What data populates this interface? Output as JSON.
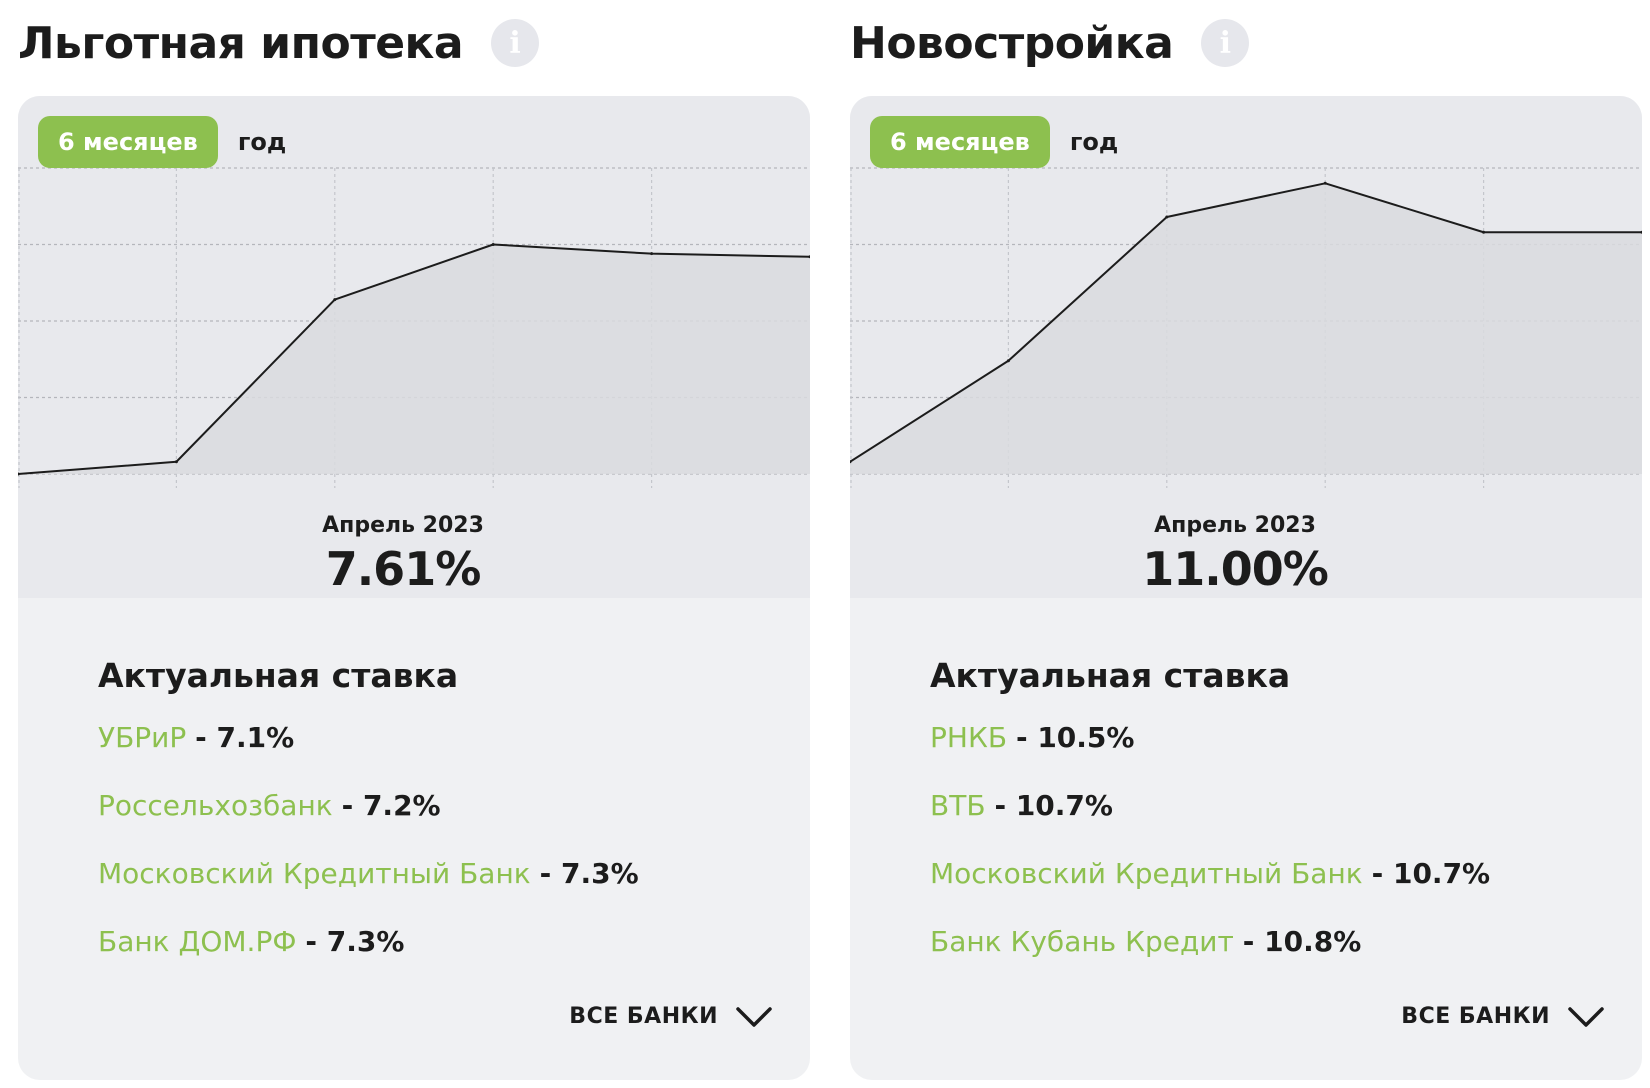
{
  "panels": [
    {
      "title": "Льготная ипотека",
      "tabs": [
        {
          "label": "6 месяцев",
          "active": true
        },
        {
          "label": "год",
          "active": false
        }
      ],
      "period": "Апрель 2023",
      "current_rate": "7.61%",
      "rates_title": "Актуальная ставка",
      "banks": [
        {
          "name": "УБРиР",
          "rate": "7.1%"
        },
        {
          "name": "Россельхозбанк",
          "rate": "7.2%"
        },
        {
          "name": "Московский Кредитный Банк",
          "rate": "7.3%"
        },
        {
          "name": "Банк ДОМ.РФ",
          "rate": "7.3%"
        }
      ],
      "all_banks_label": "ВСЕ БАНКИ"
    },
    {
      "title": "Новостройка",
      "tabs": [
        {
          "label": "6 месяцев",
          "active": true
        },
        {
          "label": "год",
          "active": false
        }
      ],
      "period": "Апрель 2023",
      "current_rate": "11.00%",
      "rates_title": "Актуальная ставка",
      "banks": [
        {
          "name": "РНКБ",
          "rate": "10.5%"
        },
        {
          "name": "ВТБ",
          "rate": "10.7%"
        },
        {
          "name": "Московский Кредитный Банк",
          "rate": "10.7%"
        },
        {
          "name": "Банк Кубань Кредит",
          "rate": "10.8%"
        }
      ],
      "all_banks_label": "ВСЕ БАНКИ"
    }
  ],
  "colors": {
    "accent": "#8dc04f",
    "chart_line": "#1c1c1c",
    "chart_fill": "#d9dade",
    "card_bg": "#f0f1f3",
    "chart_bg": "#e8e9ed"
  },
  "chart_data": [
    {
      "type": "area",
      "x": [
        0,
        1,
        2,
        3,
        4,
        5
      ],
      "series": [
        {
          "values": [
            0.0,
            0.04,
            0.57,
            0.75,
            0.72,
            0.71
          ]
        }
      ],
      "ylim": [
        0,
        1
      ],
      "grid": true,
      "title": "",
      "xlabel": "",
      "ylabel": ""
    },
    {
      "type": "area",
      "x": [
        0,
        1,
        2,
        3,
        4,
        5
      ],
      "series": [
        {
          "values": [
            0.04,
            0.37,
            0.84,
            0.95,
            0.79,
            0.79
          ]
        }
      ],
      "ylim": [
        0,
        1
      ],
      "grid": true,
      "title": "",
      "xlabel": "",
      "ylabel": ""
    }
  ]
}
